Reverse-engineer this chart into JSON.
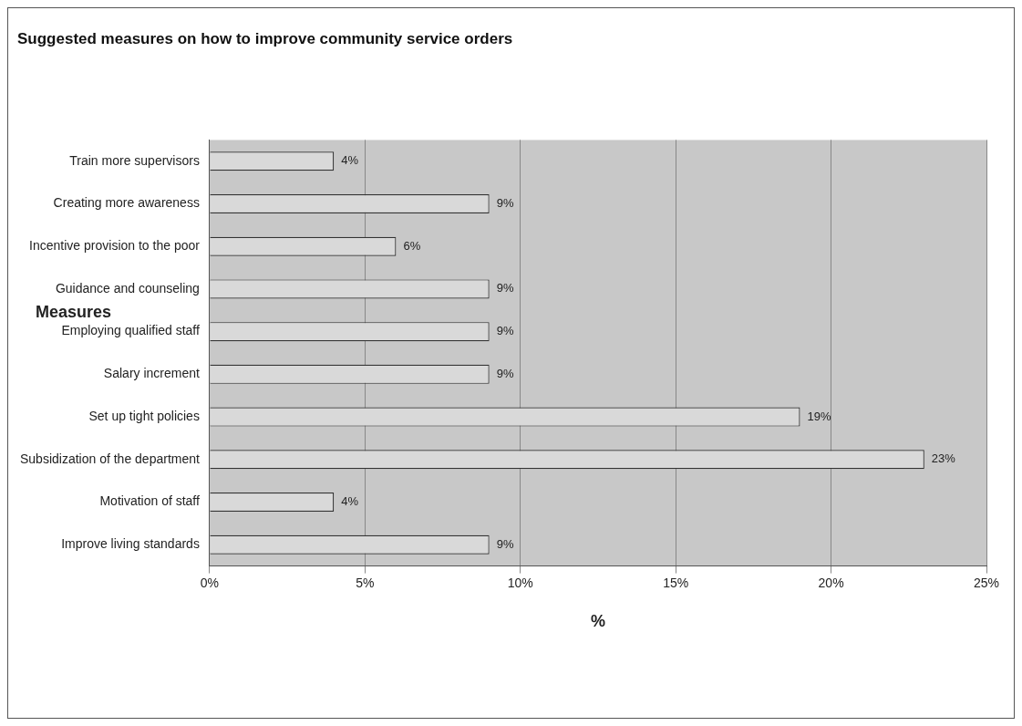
{
  "chart_data": {
    "type": "bar",
    "orientation": "horizontal",
    "title": "Suggested measures on how to improve community service orders",
    "xlabel": "%",
    "ylabel": "Measures",
    "categories": [
      "Train more supervisors",
      "Creating more awareness",
      "Incentive provision to the poor",
      "Guidance and counseling",
      "Employing qualified staff",
      "Salary increment",
      "Set up tight policies",
      "Subsidization of the department",
      "Motivation of staff",
      "Improve living standards"
    ],
    "values": [
      4,
      9,
      6,
      9,
      9,
      9,
      19,
      23,
      4,
      9
    ],
    "color": "#d9d9d9",
    "value_labels": [
      "4%",
      "9%",
      "6%",
      "9%",
      "9%",
      "9%",
      "19%",
      "23%",
      "4%",
      "9%"
    ],
    "xlim": [
      0,
      25
    ],
    "xticks": [
      {
        "value": 0,
        "label": "0%"
      },
      {
        "value": 5,
        "label": "5%"
      },
      {
        "value": 10,
        "label": "10%"
      },
      {
        "value": 15,
        "label": "15%"
      },
      {
        "value": 20,
        "label": "20%"
      },
      {
        "value": 25,
        "label": "25%"
      }
    ],
    "grid": "x",
    "legend": false
  }
}
